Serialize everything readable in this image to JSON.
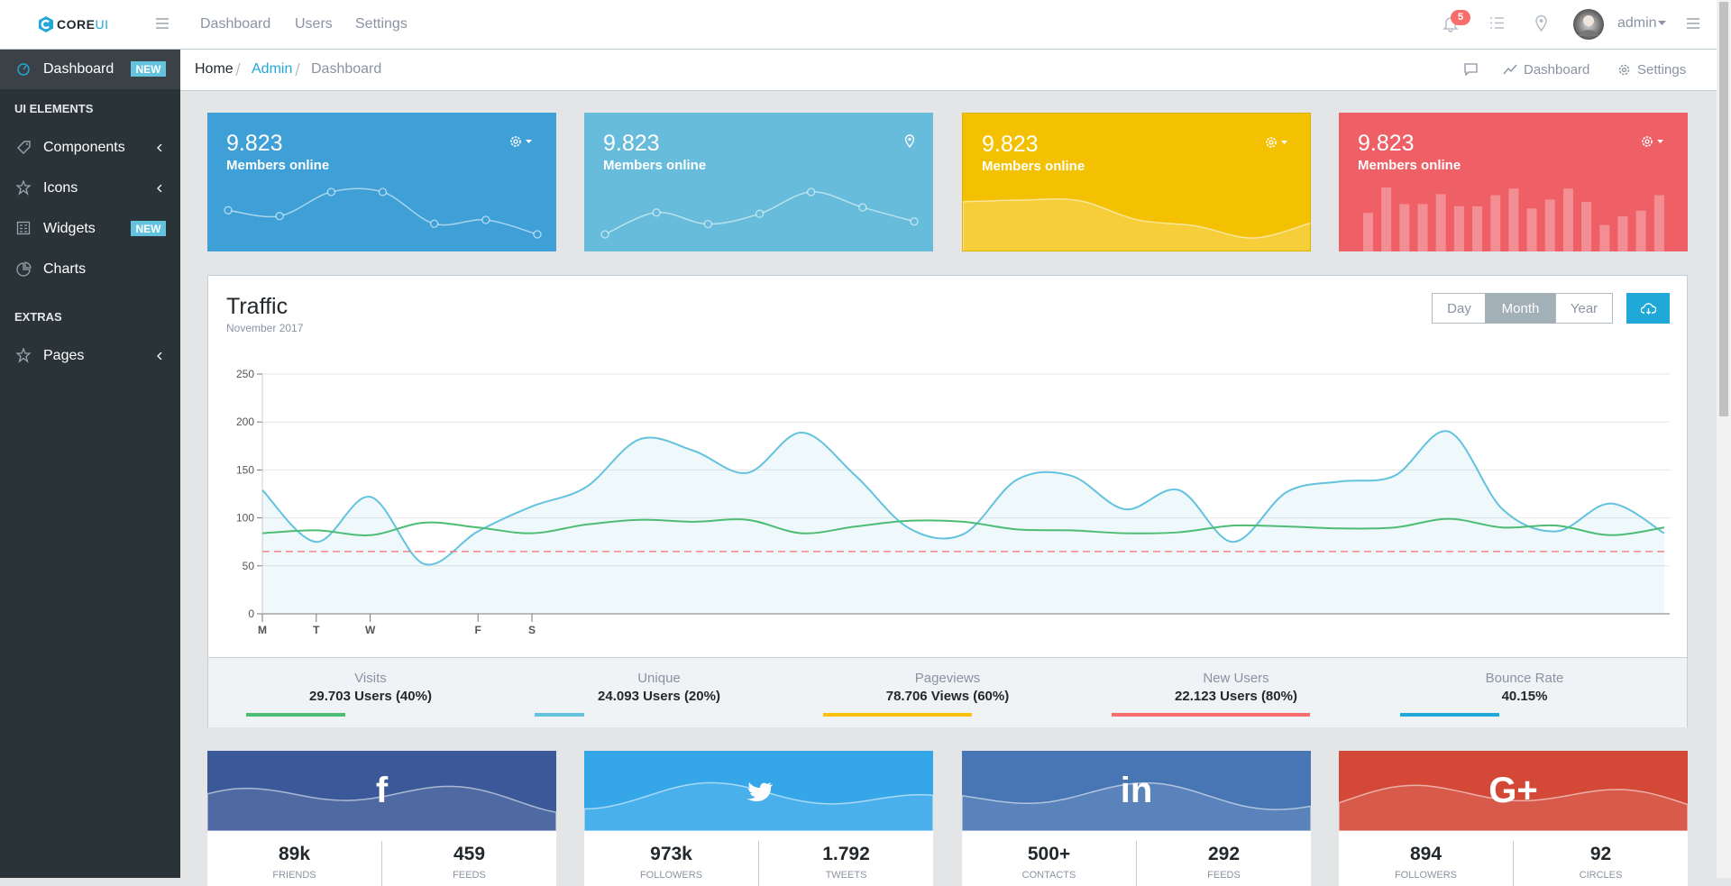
{
  "header": {
    "brand": [
      "CORE",
      "UI"
    ],
    "nav": [
      "Dashboard",
      "Users",
      "Settings"
    ],
    "notifications": "5",
    "user": "admin"
  },
  "sidebar": {
    "items": [
      {
        "label": "Dashboard",
        "badge": "NEW",
        "active": true
      },
      {
        "title": "UI ELEMENTS"
      },
      {
        "label": "Components",
        "caret": true
      },
      {
        "label": "Icons",
        "caret": true
      },
      {
        "label": "Widgets",
        "badge": "NEW"
      },
      {
        "label": "Charts"
      },
      {
        "title": "EXTRAS"
      },
      {
        "label": "Pages",
        "caret": true
      }
    ]
  },
  "breadcrumb": {
    "items": [
      "Home",
      "Admin",
      "Dashboard"
    ],
    "actions": [
      "Dashboard",
      "Settings"
    ]
  },
  "cards": [
    {
      "value": "9.823",
      "label": "Members online",
      "color": "#3ea0d6",
      "chart": {
        "type": "line",
        "values": [
          65,
          59,
          84,
          84,
          51,
          55,
          40
        ]
      }
    },
    {
      "value": "9.823",
      "label": "Members online",
      "color": "#67bcdb",
      "chart": {
        "type": "line",
        "values": [
          1,
          18,
          9,
          17,
          34,
          22,
          11
        ]
      }
    },
    {
      "value": "9.823",
      "label": "Members online",
      "color": "#f3c002",
      "chart": {
        "type": "area",
        "values": [
          78,
          81,
          80,
          45,
          34,
          12,
          40
        ]
      }
    },
    {
      "value": "9.823",
      "label": "Members online",
      "color": "#ee5f66",
      "chart": {
        "type": "bar",
        "values": [
          35,
          58,
          43,
          43,
          52,
          41,
          41,
          51,
          57,
          39,
          47,
          57,
          45,
          24,
          32,
          37,
          51
        ]
      }
    }
  ],
  "traffic": {
    "title": "Traffic",
    "subtitle": "November 2017",
    "buttons": [
      "Day",
      "Month",
      "Year"
    ],
    "active": 1
  },
  "chart_data": {
    "type": "line",
    "categories": [
      "M",
      "T",
      "W",
      null,
      "F",
      "S",
      null,
      null,
      null,
      null,
      null,
      null,
      null,
      null,
      null,
      null,
      null,
      null,
      null,
      null,
      null,
      null,
      null,
      null,
      null,
      null,
      null
    ],
    "series": [
      {
        "color": "#63c2de",
        "fill": true,
        "values": [
          129,
          75,
          122,
          52,
          86,
          112,
          132,
          182,
          170,
          147,
          189,
          144,
          89,
          83,
          140,
          144,
          109,
          129,
          75,
          127,
          138,
          144,
          190,
          109,
          86,
          115,
          84
        ]
      },
      {
        "color": "#4dbd74",
        "values": [
          84,
          87,
          82,
          95,
          90,
          84,
          93,
          98,
          96,
          98,
          84,
          91,
          97,
          96,
          88,
          87,
          84,
          85,
          92,
          91,
          89,
          90,
          99,
          90,
          92,
          82,
          90
        ]
      },
      {
        "color": "#f86c6b",
        "dash": true,
        "values": [
          65,
          65,
          65,
          65,
          65,
          65,
          65,
          65,
          65,
          65,
          65,
          65,
          65,
          65,
          65,
          65,
          65,
          65,
          65,
          65,
          65,
          65,
          65,
          65,
          65,
          65,
          65
        ]
      }
    ],
    "ylim": [
      0,
      250
    ],
    "yticks": [
      0,
      50,
      100,
      150,
      200,
      250
    ],
    "grid": true
  },
  "stats": [
    {
      "label": "Visits",
      "value": "29.703 Users (40%)",
      "progress": 40,
      "color": "#4dbd74"
    },
    {
      "label": "Unique",
      "value": "24.093 Users (20%)",
      "progress": 20,
      "color": "#63c2de"
    },
    {
      "label": "Pageviews",
      "value": "78.706 Views (60%)",
      "progress": 60,
      "color": "#ffc107"
    },
    {
      "label": "New Users",
      "value": "22.123 Users (80%)",
      "progress": 80,
      "color": "#f86c6b"
    },
    {
      "label": "Bounce Rate",
      "value": "40.15%",
      "progress": 40,
      "color": "#20a8d8"
    }
  ],
  "social": [
    {
      "color": "#3b5998",
      "icon": "f",
      "stats": [
        {
          "value": "89k",
          "label": "FRIENDS"
        },
        {
          "value": "459",
          "label": "FEEDS"
        }
      ]
    },
    {
      "color": "#35a7e9",
      "stats": [
        {
          "value": "973k",
          "label": "FOLLOWERS"
        },
        {
          "value": "1.792",
          "label": "TWEETS"
        }
      ]
    },
    {
      "color": "#4875b4",
      "icon": "in",
      "stats": [
        {
          "value": "500+",
          "label": "CONTACTS"
        },
        {
          "value": "292",
          "label": "FEEDS"
        }
      ]
    },
    {
      "color": "#d34836",
      "icon": "G+",
      "stats": [
        {
          "value": "894",
          "label": "FOLLOWERS"
        },
        {
          "value": "92",
          "label": "CIRCLES"
        }
      ]
    }
  ]
}
